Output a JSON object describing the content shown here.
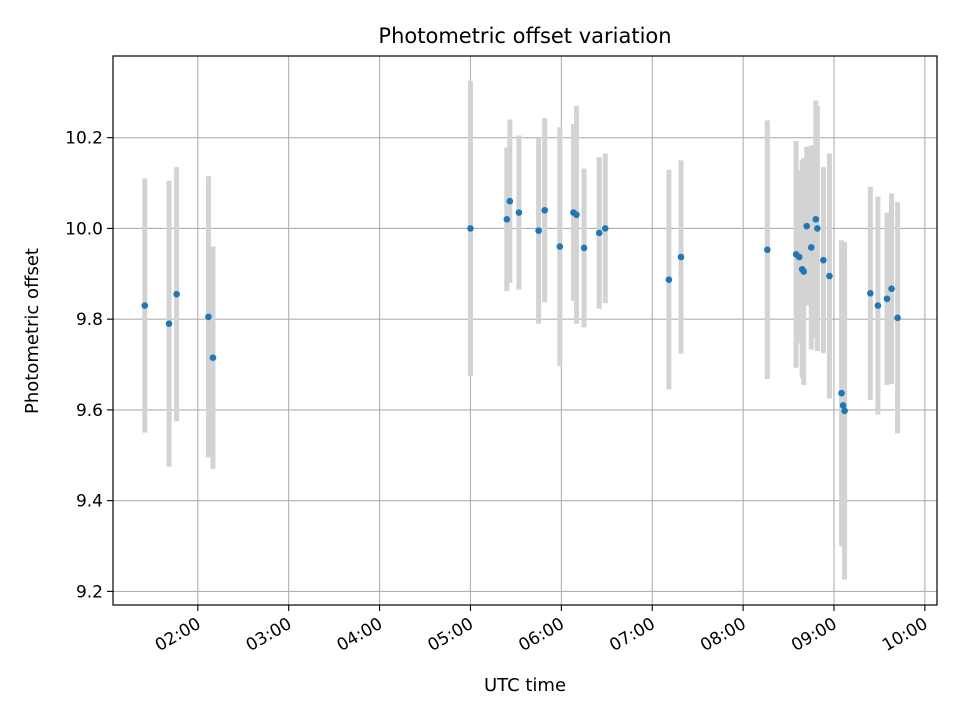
{
  "chart_data": {
    "type": "scatter",
    "title": "Photometric offset variation",
    "xlabel": "UTC time",
    "ylabel": "Photometric offset",
    "x_ticks": [
      "02:00",
      "03:00",
      "04:00",
      "05:00",
      "06:00",
      "07:00",
      "08:00",
      "09:00",
      "10:00"
    ],
    "y_ticks": [
      "9.2",
      "9.4",
      "9.6",
      "9.8",
      "10.0",
      "10.2"
    ],
    "xlim": [
      "01:04",
      "10:08"
    ],
    "ylim": [
      9.17,
      10.38
    ],
    "grid": true,
    "point_color": "#1f77b4",
    "errorbar_color": "#d3d3d3",
    "series": [
      {
        "points": [
          {
            "t": "01:25",
            "y": 9.83,
            "err": 0.28
          },
          {
            "t": "01:41",
            "y": 9.79,
            "err": 0.315
          },
          {
            "t": "01:46",
            "y": 9.855,
            "err": 0.28
          },
          {
            "t": "02:07",
            "y": 9.805,
            "err": 0.31
          },
          {
            "t": "02:10",
            "y": 9.715,
            "err": 0.245
          },
          {
            "t": "05:00",
            "y": 10.0,
            "err": 0.325
          },
          {
            "t": "05:24",
            "y": 10.02,
            "err": 0.158
          },
          {
            "t": "05:26",
            "y": 10.06,
            "err": 0.18
          },
          {
            "t": "05:32",
            "y": 10.035,
            "err": 0.17
          },
          {
            "t": "05:45",
            "y": 9.995,
            "err": 0.205
          },
          {
            "t": "05:49",
            "y": 10.04,
            "err": 0.203
          },
          {
            "t": "05:59",
            "y": 9.96,
            "err": 0.263
          },
          {
            "t": "06:08",
            "y": 10.035,
            "err": 0.195
          },
          {
            "t": "06:10",
            "y": 10.03,
            "err": 0.24
          },
          {
            "t": "06:15",
            "y": 9.957,
            "err": 0.175
          },
          {
            "t": "06:25",
            "y": 9.99,
            "err": 0.167
          },
          {
            "t": "06:29",
            "y": 10.0,
            "err": 0.165
          },
          {
            "t": "07:11",
            "y": 9.887,
            "err": 0.242
          },
          {
            "t": "07:19",
            "y": 9.937,
            "err": 0.213
          },
          {
            "t": "08:16",
            "y": 9.953,
            "err": 0.285
          },
          {
            "t": "08:35",
            "y": 9.943,
            "err": 0.25
          },
          {
            "t": "08:37",
            "y": 9.937,
            "err": 0.19
          },
          {
            "t": "08:39",
            "y": 9.91,
            "err": 0.24
          },
          {
            "t": "08:40",
            "y": 9.905,
            "err": 0.25
          },
          {
            "t": "08:42",
            "y": 10.005,
            "err": 0.175
          },
          {
            "t": "08:45",
            "y": 9.958,
            "err": 0.225
          },
          {
            "t": "08:48",
            "y": 10.02,
            "err": 0.262
          },
          {
            "t": "08:49",
            "y": 10.0,
            "err": 0.27
          },
          {
            "t": "08:53",
            "y": 9.93,
            "err": 0.205
          },
          {
            "t": "08:57",
            "y": 9.895,
            "err": 0.27
          },
          {
            "t": "09:05",
            "y": 9.637,
            "err": 0.337
          },
          {
            "t": "09:06",
            "y": 9.61,
            "err": 0.312
          },
          {
            "t": "09:07",
            "y": 9.598,
            "err": 0.372
          },
          {
            "t": "09:24",
            "y": 9.857,
            "err": 0.235
          },
          {
            "t": "09:29",
            "y": 9.83,
            "err": 0.24
          },
          {
            "t": "09:35",
            "y": 9.845,
            "err": 0.19
          },
          {
            "t": "09:38",
            "y": 9.867,
            "err": 0.21
          },
          {
            "t": "09:42",
            "y": 9.803,
            "err": 0.255
          }
        ]
      }
    ]
  }
}
